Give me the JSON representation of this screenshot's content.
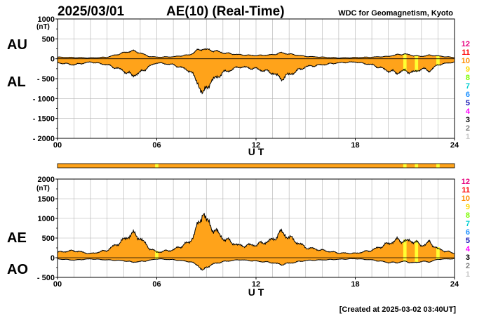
{
  "header": {
    "date": "2025/03/01",
    "title": "AE(10) (Real-Time)",
    "organization": "WDC for Geomagnetism, Kyoto"
  },
  "footer": {
    "created": "[Created at 2025-03-02 03:40UT]"
  },
  "station_legend": [
    {
      "label": "12",
      "color": "#e6007e"
    },
    {
      "label": "11",
      "color": "#ff0000"
    },
    {
      "label": "10",
      "color": "#ff8c00"
    },
    {
      "label": "9",
      "color": "#ffd700"
    },
    {
      "label": "8",
      "color": "#7cfc00"
    },
    {
      "label": "7",
      "color": "#00ced1"
    },
    {
      "label": "6",
      "color": "#1e90ff"
    },
    {
      "label": "5",
      "color": "#1414b4"
    },
    {
      "label": "4",
      "color": "#ff00ff"
    },
    {
      "label": "3",
      "color": "#000000"
    },
    {
      "label": "2",
      "color": "#808080"
    },
    {
      "label": "1",
      "color": "#c8c8c8"
    }
  ],
  "colors": {
    "fill_main": "#ffa31a",
    "fill_highlight": "#ffff33",
    "outline": "#000000",
    "grid": "#b0b0b0"
  },
  "chart_data": [
    {
      "type": "area",
      "panel": "upper",
      "series_labels": [
        "AU",
        "AL"
      ],
      "unit_label": "(nT)",
      "xlabel": "U T",
      "x_ticks": [
        "00",
        "06",
        "12",
        "18",
        "24"
      ],
      "x_range": [
        0,
        24
      ],
      "ylim": [
        -2000,
        1000
      ],
      "y_ticks": [
        "1000",
        "500",
        "0",
        "- 500",
        "- 1000",
        "- 1500",
        "- 2000"
      ],
      "grid": true,
      "x_hours": [
        0,
        1,
        2,
        3,
        4,
        4.5,
        5,
        5.5,
        6,
        7,
        8,
        8.5,
        8.8,
        9,
        9.5,
        10,
        11,
        12,
        13,
        13.5,
        14,
        15,
        16,
        17,
        18,
        19,
        20,
        20.5,
        21,
        21.5,
        22,
        22.5,
        23,
        24
      ],
      "AU": [
        40,
        30,
        20,
        40,
        150,
        200,
        150,
        60,
        40,
        50,
        100,
        220,
        250,
        230,
        200,
        150,
        100,
        80,
        100,
        150,
        120,
        60,
        40,
        20,
        30,
        40,
        60,
        100,
        120,
        80,
        60,
        90,
        70,
        30
      ],
      "AL": [
        -100,
        -150,
        -80,
        -150,
        -300,
        -420,
        -350,
        -200,
        -100,
        -150,
        -300,
        -600,
        -950,
        -700,
        -500,
        -350,
        -200,
        -250,
        -350,
        -500,
        -400,
        -200,
        -150,
        -100,
        -80,
        -150,
        -300,
        -350,
        -300,
        -350,
        -250,
        -300,
        -150,
        -80
      ],
      "highlight_bands_ut": [
        [
          20.9,
          21.1
        ],
        [
          21.6,
          21.8
        ],
        [
          22.9,
          23.1
        ]
      ]
    },
    {
      "type": "area",
      "panel": "lower",
      "series_labels": [
        "AE",
        "AO"
      ],
      "unit_label": "(nT)",
      "xlabel": "U T",
      "x_ticks": [
        "00",
        "06",
        "12",
        "18",
        "24"
      ],
      "x_range": [
        0,
        24
      ],
      "ylim": [
        -500,
        2000
      ],
      "y_ticks": [
        "2000",
        "1500",
        "1000",
        "500",
        "0",
        "- 500"
      ],
      "grid": true,
      "x_hours": [
        0,
        1,
        2,
        3,
        4,
        4.5,
        5,
        5.5,
        6,
        7,
        8,
        8.5,
        8.8,
        9,
        9.5,
        10,
        11,
        12,
        13,
        13.5,
        14,
        15,
        16,
        17,
        18,
        19,
        20,
        20.5,
        21,
        21.5,
        22,
        22.5,
        23,
        24
      ],
      "AE": [
        140,
        180,
        100,
        190,
        450,
        620,
        500,
        260,
        140,
        200,
        400,
        820,
        1200,
        930,
        700,
        500,
        300,
        330,
        450,
        650,
        520,
        260,
        190,
        120,
        110,
        190,
        360,
        450,
        420,
        430,
        310,
        390,
        220,
        110
      ],
      "AO": [
        -30,
        -60,
        -30,
        -55,
        -75,
        -110,
        -100,
        -70,
        -30,
        -50,
        -100,
        -190,
        -350,
        -235,
        -150,
        -100,
        -50,
        -85,
        -125,
        -175,
        -140,
        -70,
        -55,
        -40,
        -25,
        -55,
        -120,
        -125,
        -90,
        -135,
        -95,
        -105,
        -40,
        -25
      ],
      "activity_strip": true,
      "highlight_bands_ut": [
        [
          5.9,
          6.1
        ],
        [
          20.9,
          21.1
        ],
        [
          21.6,
          21.8
        ],
        [
          22.9,
          23.1
        ]
      ]
    }
  ]
}
